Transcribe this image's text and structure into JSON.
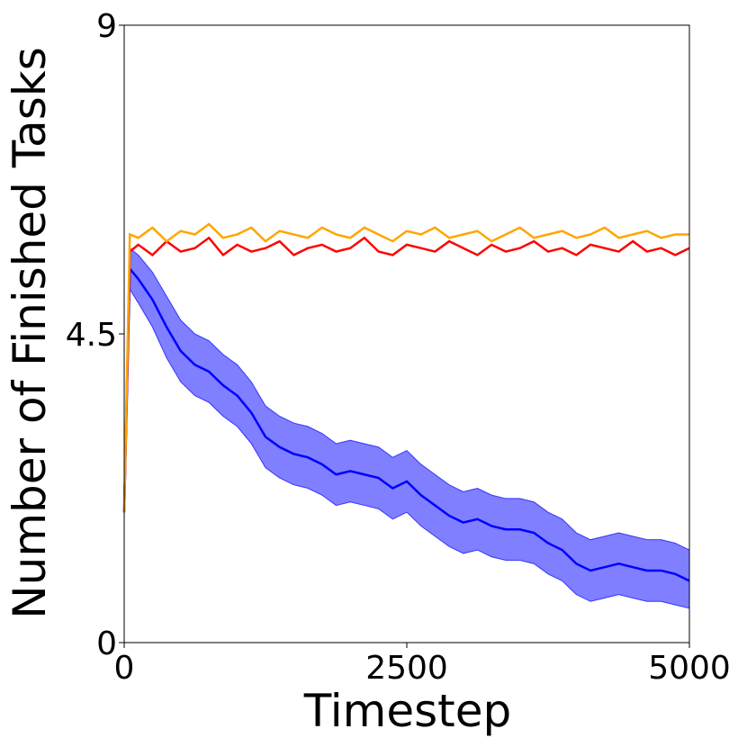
{
  "chart_data": {
    "type": "line",
    "xlabel": "Timestep",
    "ylabel": "Number of Finished Tasks",
    "x": [
      0,
      50,
      125,
      250,
      375,
      500,
      625,
      750,
      875,
      1000,
      1125,
      1250,
      1375,
      1500,
      1625,
      1750,
      1875,
      2000,
      2125,
      2250,
      2375,
      2500,
      2625,
      2750,
      2875,
      3000,
      3125,
      3250,
      3375,
      3500,
      3625,
      3750,
      3875,
      4000,
      4125,
      4250,
      4375,
      4500,
      4625,
      4750,
      4875,
      5000
    ],
    "series": [
      {
        "color": "#0000ff",
        "values": [
          1.9,
          5.45,
          5.3,
          5.0,
          4.6,
          4.25,
          4.05,
          3.95,
          3.75,
          3.6,
          3.35,
          3.0,
          2.85,
          2.75,
          2.7,
          2.6,
          2.45,
          2.5,
          2.45,
          2.4,
          2.25,
          2.35,
          2.15,
          2.0,
          1.85,
          1.75,
          1.8,
          1.7,
          1.65,
          1.65,
          1.6,
          1.45,
          1.35,
          1.15,
          1.05,
          1.1,
          1.15,
          1.1,
          1.05,
          1.05,
          1.0,
          0.9
        ],
        "lower": [
          1.9,
          5.15,
          4.95,
          4.6,
          4.15,
          3.8,
          3.6,
          3.5,
          3.3,
          3.15,
          2.9,
          2.55,
          2.4,
          2.3,
          2.25,
          2.15,
          2.0,
          2.05,
          2.0,
          1.95,
          1.8,
          1.9,
          1.7,
          1.55,
          1.4,
          1.3,
          1.35,
          1.25,
          1.2,
          1.2,
          1.15,
          1.0,
          0.9,
          0.7,
          0.6,
          0.65,
          0.7,
          0.65,
          0.6,
          0.6,
          0.55,
          0.5
        ],
        "upper": [
          1.9,
          5.75,
          5.65,
          5.4,
          5.05,
          4.7,
          4.5,
          4.4,
          4.2,
          4.05,
          3.8,
          3.45,
          3.3,
          3.2,
          3.15,
          3.05,
          2.9,
          2.95,
          2.9,
          2.85,
          2.7,
          2.8,
          2.6,
          2.45,
          2.3,
          2.2,
          2.25,
          2.15,
          2.1,
          2.1,
          2.05,
          1.9,
          1.8,
          1.6,
          1.5,
          1.55,
          1.6,
          1.55,
          1.5,
          1.5,
          1.45,
          1.35
        ]
      },
      {
        "color": "#ff0000",
        "values": [
          1.9,
          5.7,
          5.8,
          5.65,
          5.85,
          5.7,
          5.75,
          5.9,
          5.65,
          5.8,
          5.7,
          5.75,
          5.85,
          5.65,
          5.75,
          5.8,
          5.7,
          5.75,
          5.9,
          5.7,
          5.65,
          5.8,
          5.75,
          5.7,
          5.85,
          5.75,
          5.65,
          5.8,
          5.7,
          5.75,
          5.85,
          5.7,
          5.75,
          5.65,
          5.8,
          5.75,
          5.7,
          5.85,
          5.7,
          5.75,
          5.65,
          5.75
        ]
      },
      {
        "color": "#ffa500",
        "values": [
          1.9,
          5.95,
          5.9,
          6.05,
          5.85,
          6.0,
          5.95,
          6.1,
          5.9,
          5.95,
          6.05,
          5.85,
          6.0,
          5.95,
          5.9,
          6.05,
          5.95,
          5.9,
          6.05,
          5.95,
          5.85,
          6.0,
          5.95,
          6.05,
          5.9,
          5.95,
          6.0,
          5.85,
          5.95,
          6.05,
          5.9,
          5.95,
          6.0,
          5.9,
          5.95,
          6.05,
          5.9,
          5.95,
          6.0,
          5.9,
          5.95,
          5.95
        ]
      }
    ],
    "xlim": [
      0,
      5000
    ],
    "xticks": [
      0,
      2500,
      5000
    ],
    "ylim": [
      0,
      9
    ],
    "yticks": [
      0,
      4.5,
      9
    ]
  }
}
